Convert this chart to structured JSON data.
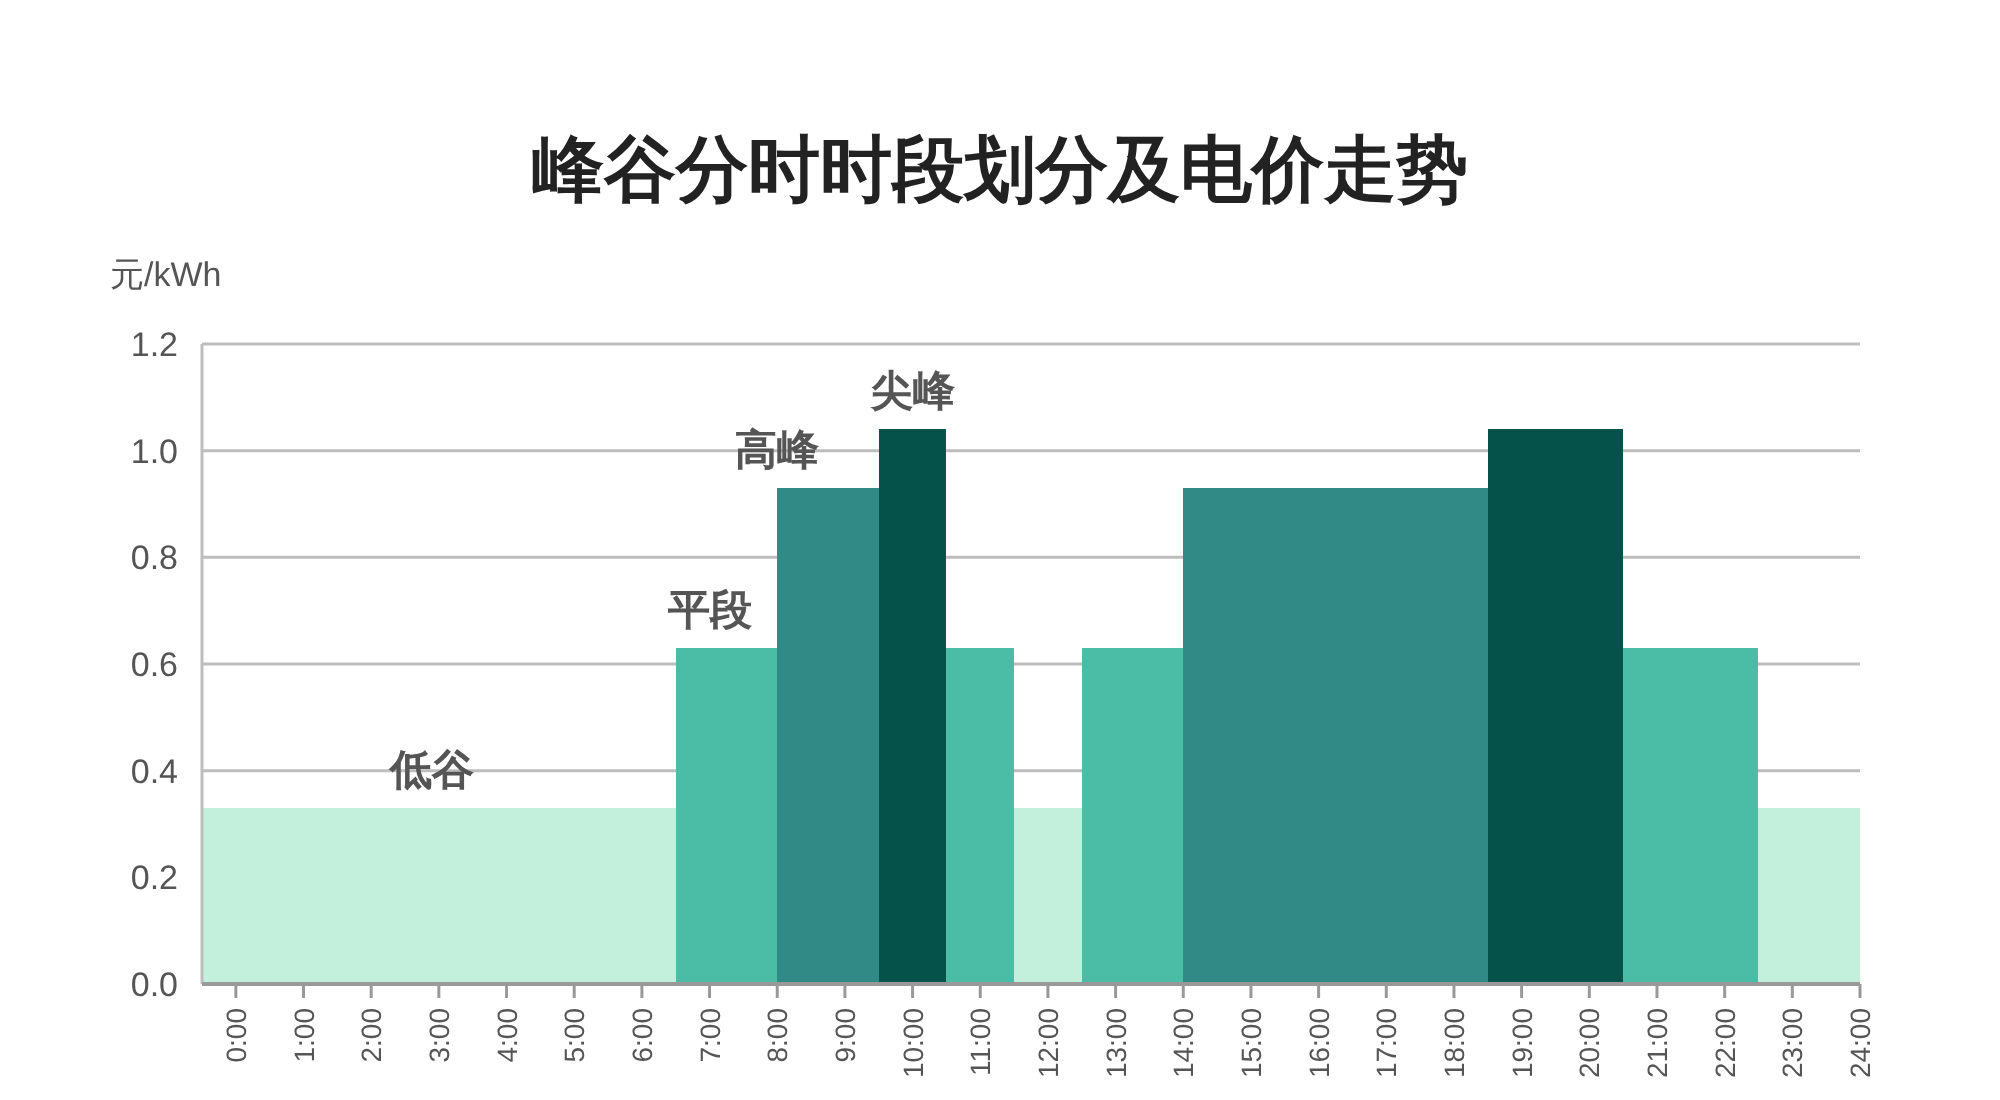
{
  "chart_data": {
    "type": "histogram",
    "title": "峰谷分时时段划分及电价走势",
    "ylabel": "元/kWh",
    "bins": [
      -0.5,
      6.5,
      8,
      9.5,
      10.5,
      11.5,
      12.5,
      14,
      18.5,
      20.5,
      22.5,
      24
    ],
    "values": [
      0.33,
      0.63,
      0.93,
      1.04,
      0.63,
      0.33,
      0.63,
      0.93,
      1.04,
      0.63,
      0.33
    ],
    "colors": [
      "#c2f0dd",
      "#4bbda6",
      "#318a86",
      "#04524a",
      "#4bbda6",
      "#c2f0dd",
      "#4bbda6",
      "#318a86",
      "#04524a",
      "#4bbda6",
      "#c2f0dd"
    ],
    "xlim": [
      -0.5,
      24
    ],
    "xticks": [
      {
        "value": 0,
        "label": "0:00"
      },
      {
        "value": 1,
        "label": "1:00"
      },
      {
        "value": 2,
        "label": "2:00"
      },
      {
        "value": 3,
        "label": "3:00"
      },
      {
        "value": 4,
        "label": "4:00"
      },
      {
        "value": 5,
        "label": "5:00"
      },
      {
        "value": 6,
        "label": "6:00"
      },
      {
        "value": 7,
        "label": "7:00"
      },
      {
        "value": 8,
        "label": "8:00"
      },
      {
        "value": 9,
        "label": "9:00"
      },
      {
        "value": 10,
        "label": "10:00"
      },
      {
        "value": 11,
        "label": "11:00"
      },
      {
        "value": 12,
        "label": "12:00"
      },
      {
        "value": 13,
        "label": "13:00"
      },
      {
        "value": 14,
        "label": "14:00"
      },
      {
        "value": 15,
        "label": "15:00"
      },
      {
        "value": 16,
        "label": "16:00"
      },
      {
        "value": 17,
        "label": "17:00"
      },
      {
        "value": 18,
        "label": "18:00"
      },
      {
        "value": 19,
        "label": "19:00"
      },
      {
        "value": 20,
        "label": "20:00"
      },
      {
        "value": 21,
        "label": "21:00"
      },
      {
        "value": 22,
        "label": "22:00"
      },
      {
        "value": 23,
        "label": "23:00"
      },
      {
        "value": 24,
        "label": "24:00"
      }
    ],
    "ylim": [
      0,
      1.2
    ],
    "yticks": [
      {
        "value": 0,
        "label": "0.0"
      },
      0.2,
      0.4,
      0.6,
      0.8,
      {
        "value": 1,
        "label": "1.0"
      },
      1.2
    ],
    "grid": "y",
    "annotations": [
      {
        "text": "低谷",
        "x": 2.9,
        "y": 0.33
      },
      {
        "text": "平段",
        "x": 7.0,
        "y": 0.63
      },
      {
        "text": "高峰",
        "x": 8.0,
        "y": 0.93
      },
      {
        "text": "尖峰",
        "x": 10.0,
        "y": 1.04
      }
    ]
  }
}
